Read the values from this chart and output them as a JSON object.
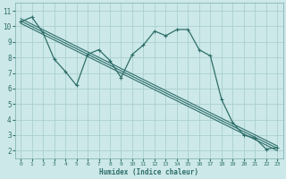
{
  "xlabel": "Humidex (Indice chaleur)",
  "background_color": "#cce8e8",
  "grid_color": "#aacfcf",
  "line_color": "#2e6e6a",
  "xlim": [
    -0.5,
    23.5
  ],
  "ylim": [
    1.5,
    11.5
  ],
  "xticks": [
    0,
    1,
    2,
    3,
    4,
    5,
    6,
    7,
    8,
    9,
    10,
    11,
    12,
    13,
    14,
    15,
    16,
    17,
    18,
    19,
    20,
    21,
    22,
    23
  ],
  "yticks": [
    2,
    3,
    4,
    5,
    6,
    7,
    8,
    9,
    10,
    11
  ],
  "line1_x": [
    0,
    1,
    2,
    3,
    4,
    5,
    6,
    7,
    8,
    9,
    10,
    11,
    12,
    13,
    14,
    15,
    16,
    17,
    18,
    19,
    20,
    21,
    22,
    23
  ],
  "line1_y": [
    10.3,
    10.6,
    9.6,
    7.9,
    7.1,
    6.2,
    8.2,
    8.5,
    7.8,
    6.7,
    8.2,
    8.8,
    9.7,
    9.4,
    9.8,
    9.8,
    8.5,
    8.1,
    5.3,
    3.8,
    3.0,
    2.8,
    2.1,
    2.2
  ],
  "line2_x": [
    0,
    23
  ],
  "line2_y": [
    10.5,
    2.3
  ],
  "line3_x": [
    0,
    23
  ],
  "line3_y": [
    10.35,
    2.15
  ],
  "line4_x": [
    0,
    23
  ],
  "line4_y": [
    10.2,
    2.0
  ]
}
